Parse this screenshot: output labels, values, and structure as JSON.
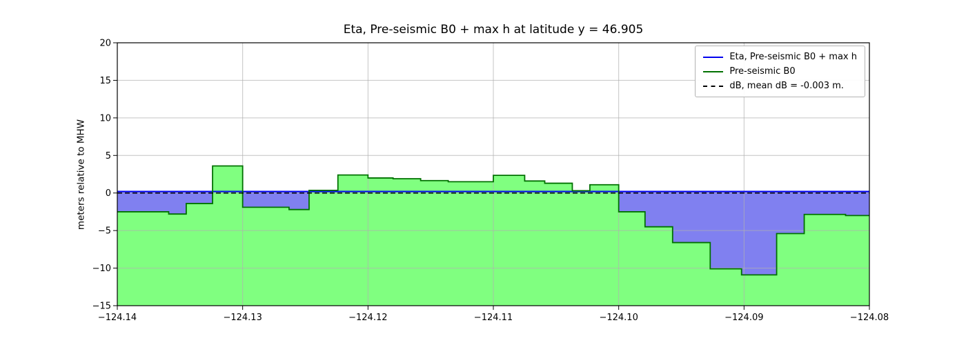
{
  "legend": {
    "entries": [
      {
        "label": "Eta, Pre-seismic B0 + max h",
        "color": "#0000ee",
        "style": "solid"
      },
      {
        "label": "Pre-seismic B0",
        "color": "#007000",
        "style": "solid"
      },
      {
        "label": "dB, mean dB = -0.003 m.",
        "color": "#000000",
        "style": "dashed"
      }
    ]
  },
  "chart_data": {
    "type": "area",
    "title": "Eta, Pre-seismic B0 + max h at latitude y = 46.905",
    "xlabel": "",
    "ylabel": "meters relative to MHW",
    "xlim": [
      -124.14,
      -124.08
    ],
    "ylim": [
      -15,
      20
    ],
    "grid": true,
    "legend_position": "upper right",
    "xticks": {
      "values": [
        -124.14,
        -124.13,
        -124.12,
        -124.11,
        -124.1,
        -124.09,
        -124.08
      ],
      "labels": [
        "−124.14",
        "−124.13",
        "−124.12",
        "−124.11",
        "−124.10",
        "−124.09",
        "−124.08"
      ]
    },
    "yticks": {
      "values": [
        -15,
        -10,
        -5,
        0,
        5,
        10,
        15,
        20
      ],
      "labels": [
        "−15",
        "−10",
        "−5",
        "0",
        "5",
        "10",
        "15",
        "20"
      ]
    },
    "eta_level": 0.2,
    "db_line_level": 0.0,
    "db_mean": -0.003,
    "b0_steps": [
      {
        "x0": -124.14,
        "x1": -124.1359,
        "z": -2.5
      },
      {
        "x0": -124.1359,
        "x1": -124.1345,
        "z": -2.8
      },
      {
        "x0": -124.1345,
        "x1": -124.1324,
        "z": -1.4
      },
      {
        "x0": -124.1324,
        "x1": -124.13,
        "z": 3.6
      },
      {
        "x0": -124.13,
        "x1": -124.1263,
        "z": -1.9
      },
      {
        "x0": -124.1263,
        "x1": -124.1247,
        "z": -2.2
      },
      {
        "x0": -124.1247,
        "x1": -124.1224,
        "z": 0.35
      },
      {
        "x0": -124.1224,
        "x1": -124.12,
        "z": 2.4
      },
      {
        "x0": -124.12,
        "x1": -124.118,
        "z": 2.0
      },
      {
        "x0": -124.118,
        "x1": -124.1158,
        "z": 1.9
      },
      {
        "x0": -124.1158,
        "x1": -124.1136,
        "z": 1.65
      },
      {
        "x0": -124.1136,
        "x1": -124.11,
        "z": 1.5
      },
      {
        "x0": -124.11,
        "x1": -124.1075,
        "z": 2.35
      },
      {
        "x0": -124.1075,
        "x1": -124.1059,
        "z": 1.6
      },
      {
        "x0": -124.1059,
        "x1": -124.1037,
        "z": 1.3
      },
      {
        "x0": -124.1037,
        "x1": -124.1023,
        "z": 0.3
      },
      {
        "x0": -124.1023,
        "x1": -124.1,
        "z": 1.1
      },
      {
        "x0": -124.1,
        "x1": -124.0979,
        "z": -2.5
      },
      {
        "x0": -124.0979,
        "x1": -124.0957,
        "z": -4.5
      },
      {
        "x0": -124.0957,
        "x1": -124.0927,
        "z": -6.6
      },
      {
        "x0": -124.0927,
        "x1": -124.0902,
        "z": -10.1
      },
      {
        "x0": -124.0902,
        "x1": -124.0874,
        "z": -10.9
      },
      {
        "x0": -124.0874,
        "x1": -124.0852,
        "z": -5.4
      },
      {
        "x0": -124.0852,
        "x1": -124.0819,
        "z": -2.85
      },
      {
        "x0": -124.0819,
        "x1": -124.08,
        "z": -3.0
      }
    ],
    "colors": {
      "b0_fill": "#80ff80",
      "b0_line": "#007000",
      "eta_fill": "#8080f0",
      "eta_line": "#0000ee",
      "db_line": "#000000",
      "grid": "#b0b0b0"
    }
  }
}
